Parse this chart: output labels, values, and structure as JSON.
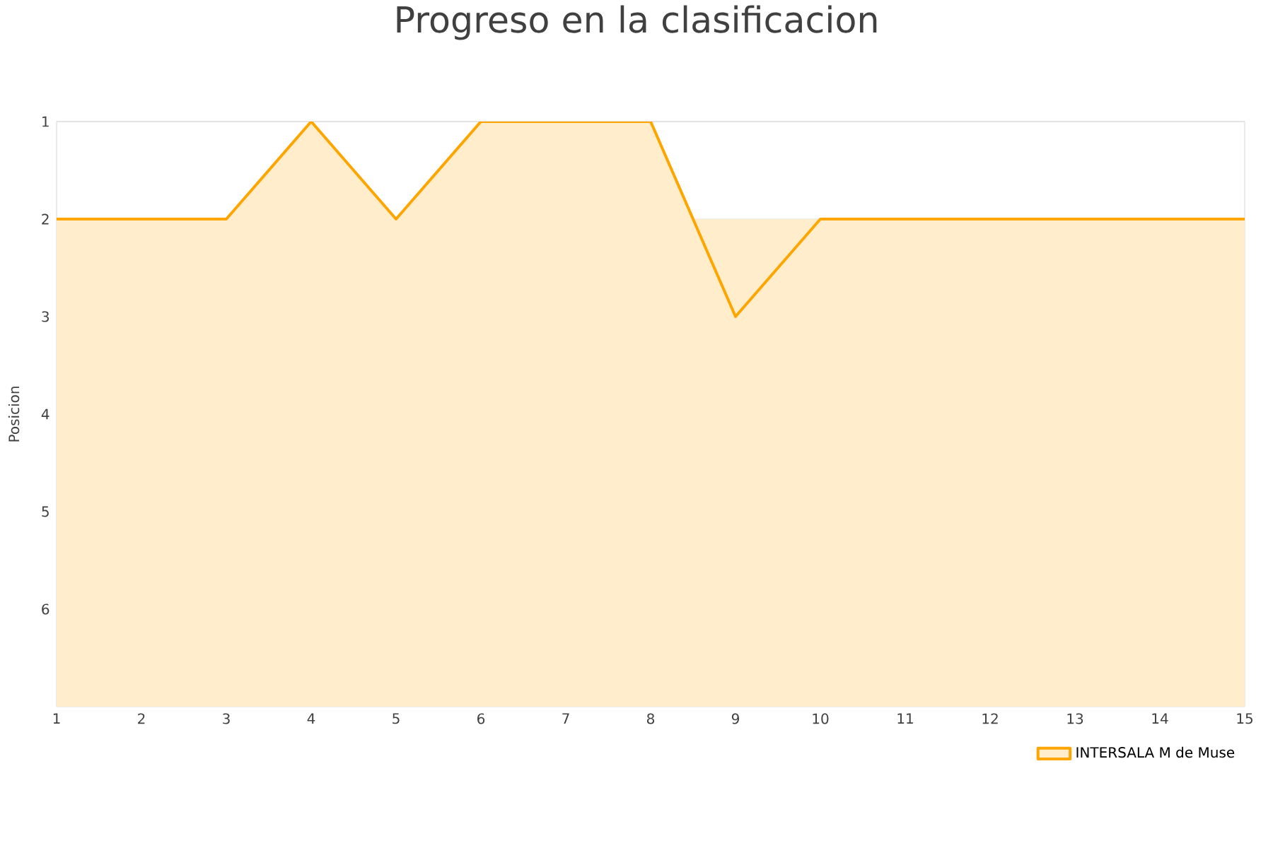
{
  "chart_data": {
    "type": "area",
    "title": "Progreso en la clasificacion",
    "ylabel": "Posicion",
    "x": [
      1,
      2,
      3,
      4,
      5,
      6,
      7,
      8,
      9,
      10,
      11,
      12,
      13,
      14,
      15
    ],
    "series": [
      {
        "name": "INTERSALA M de Muse",
        "color": "#ffa500",
        "values": [
          2,
          2,
          2,
          1,
          2,
          1,
          1,
          1,
          3,
          2,
          2,
          2,
          2,
          2,
          2
        ]
      }
    ],
    "xlim": [
      1,
      15
    ],
    "xticks": [
      1,
      2,
      3,
      4,
      5,
      6,
      7,
      8,
      9,
      10,
      11,
      12,
      13,
      14,
      15
    ],
    "ylim": [
      7,
      1
    ],
    "yticks": [
      1,
      2,
      3,
      4,
      5,
      6
    ],
    "grid": "y",
    "legend": "bottom right"
  }
}
